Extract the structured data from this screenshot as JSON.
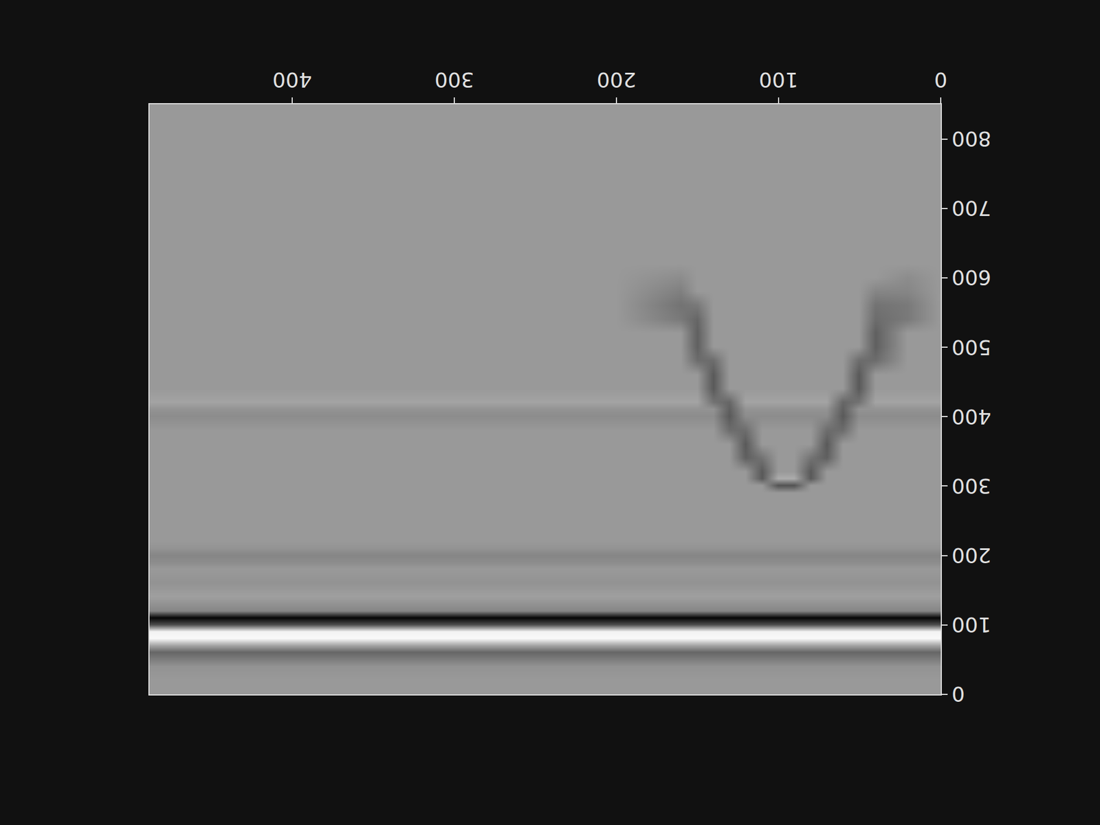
{
  "chart_data": {
    "type": "heatmap",
    "color": "gray",
    "grid": false,
    "xlim": [
      0,
      488
    ],
    "xticks": [
      0,
      100,
      200,
      300,
      400
    ],
    "ylim": [
      850,
      0
    ],
    "yticks": [
      0,
      100,
      200,
      300,
      400,
      500,
      600,
      700,
      800
    ],
    "color_range": [
      -1,
      1
    ],
    "x": [
      0,
      20,
      40,
      50,
      60,
      70,
      80,
      90,
      100,
      110,
      120,
      130,
      140,
      150,
      160,
      200,
      240,
      280,
      320,
      360,
      400,
      440,
      488
    ],
    "y": [
      0,
      20,
      40,
      60,
      70,
      80,
      90,
      100,
      110,
      120,
      140,
      160,
      180,
      190,
      200,
      210,
      220,
      240,
      260,
      280,
      290,
      300,
      310,
      320,
      340,
      360,
      380,
      400,
      410,
      420,
      440,
      460,
      480,
      500,
      520,
      540,
      560,
      580,
      600,
      620,
      640,
      680,
      720,
      760,
      800,
      850
    ],
    "cells": [
      [
        0.2,
        0.2,
        0.2,
        0.2,
        0.2,
        0.2,
        0.2,
        0.2,
        0.2,
        0.2,
        0.2,
        0.2,
        0.2,
        0.2,
        0.2,
        0.2,
        0.2,
        0.2,
        0.2,
        0.2,
        0.2,
        0.2,
        0.2
      ],
      [
        0.2,
        0.2,
        0.2,
        0.2,
        0.2,
        0.2,
        0.2,
        0.2,
        0.2,
        0.2,
        0.2,
        0.2,
        0.2,
        0.2,
        0.2,
        0.2,
        0.2,
        0.2,
        0.2,
        0.2,
        0.2,
        0.2,
        0.2
      ],
      [
        0.15,
        0.15,
        0.15,
        0.15,
        0.15,
        0.15,
        0.15,
        0.15,
        0.15,
        0.15,
        0.15,
        0.15,
        0.15,
        0.15,
        0.15,
        0.15,
        0.15,
        0.15,
        0.15,
        0.15,
        0.15,
        0.15,
        0.15
      ],
      [
        -0.2,
        -0.2,
        -0.2,
        -0.2,
        -0.2,
        -0.2,
        -0.2,
        -0.2,
        -0.2,
        -0.2,
        -0.2,
        -0.2,
        -0.2,
        -0.2,
        -0.2,
        -0.2,
        -0.2,
        -0.2,
        -0.2,
        -0.2,
        -0.2,
        -0.2,
        -0.2
      ],
      [
        0.3,
        0.3,
        0.3,
        0.3,
        0.3,
        0.3,
        0.3,
        0.3,
        0.3,
        0.3,
        0.3,
        0.3,
        0.3,
        0.3,
        0.3,
        0.3,
        0.3,
        0.3,
        0.3,
        0.3,
        0.3,
        0.3,
        0.3
      ],
      [
        0.95,
        0.95,
        0.95,
        0.95,
        0.95,
        0.95,
        0.95,
        0.95,
        0.95,
        0.95,
        0.95,
        0.95,
        0.95,
        0.95,
        0.95,
        0.95,
        0.95,
        0.95,
        0.95,
        0.95,
        0.95,
        0.95,
        0.95
      ],
      [
        0.9,
        0.9,
        0.9,
        0.9,
        0.9,
        0.9,
        0.9,
        0.9,
        0.9,
        0.9,
        0.9,
        0.9,
        0.9,
        0.9,
        0.9,
        0.9,
        0.9,
        0.9,
        0.9,
        0.9,
        0.9,
        0.9,
        0.9
      ],
      [
        -0.4,
        -0.4,
        -0.4,
        -0.4,
        -0.4,
        -0.4,
        -0.4,
        -0.4,
        -0.4,
        -0.4,
        -0.4,
        -0.4,
        -0.4,
        -0.4,
        -0.4,
        -0.4,
        -0.4,
        -0.4,
        -0.4,
        -0.4,
        -0.4,
        -0.4,
        -0.4
      ],
      [
        -0.95,
        -0.95,
        -0.95,
        -0.95,
        -0.95,
        -0.95,
        -0.95,
        -0.95,
        -0.95,
        -0.95,
        -0.95,
        -0.95,
        -0.95,
        -0.95,
        -0.95,
        -0.95,
        -0.95,
        -0.95,
        -0.95,
        -0.95,
        -0.95,
        -0.95,
        -0.95
      ],
      [
        0.05,
        0.05,
        0.05,
        0.05,
        0.05,
        0.05,
        0.05,
        0.05,
        0.05,
        0.05,
        0.05,
        0.05,
        0.05,
        0.05,
        0.05,
        0.05,
        0.05,
        0.05,
        0.05,
        0.05,
        0.05,
        0.05,
        0.05
      ],
      [
        0.25,
        0.25,
        0.25,
        0.25,
        0.25,
        0.25,
        0.25,
        0.25,
        0.25,
        0.25,
        0.25,
        0.25,
        0.25,
        0.25,
        0.25,
        0.25,
        0.25,
        0.25,
        0.25,
        0.25,
        0.25,
        0.25,
        0.25
      ],
      [
        0.15,
        0.15,
        0.15,
        0.15,
        0.15,
        0.15,
        0.15,
        0.15,
        0.15,
        0.15,
        0.15,
        0.15,
        0.15,
        0.15,
        0.15,
        0.15,
        0.15,
        0.15,
        0.15,
        0.15,
        0.15,
        0.15,
        0.15
      ],
      [
        0.2,
        0.2,
        0.2,
        0.2,
        0.2,
        0.2,
        0.2,
        0.2,
        0.2,
        0.2,
        0.2,
        0.2,
        0.2,
        0.2,
        0.2,
        0.2,
        0.2,
        0.2,
        0.2,
        0.2,
        0.2,
        0.2,
        0.2
      ],
      [
        0.1,
        0.1,
        0.1,
        0.1,
        0.1,
        0.1,
        0.1,
        0.1,
        0.1,
        0.1,
        0.1,
        0.1,
        0.1,
        0.1,
        0.1,
        0.1,
        0.1,
        0.1,
        0.1,
        0.1,
        0.1,
        0.1,
        0.1
      ],
      [
        0.05,
        0.05,
        0.05,
        0.05,
        0.05,
        0.05,
        0.05,
        0.05,
        0.05,
        0.05,
        0.05,
        0.05,
        0.05,
        0.05,
        0.05,
        0.05,
        0.05,
        0.05,
        0.05,
        0.05,
        0.05,
        0.05,
        0.05
      ],
      [
        0.15,
        0.15,
        0.15,
        0.15,
        0.15,
        0.15,
        0.15,
        0.15,
        0.15,
        0.15,
        0.15,
        0.15,
        0.15,
        0.15,
        0.15,
        0.15,
        0.15,
        0.15,
        0.15,
        0.15,
        0.15,
        0.15,
        0.15
      ],
      [
        0.2,
        0.2,
        0.2,
        0.2,
        0.2,
        0.2,
        0.2,
        0.2,
        0.2,
        0.2,
        0.2,
        0.2,
        0.2,
        0.2,
        0.2,
        0.2,
        0.2,
        0.2,
        0.2,
        0.2,
        0.2,
        0.2,
        0.2
      ],
      [
        0.2,
        0.2,
        0.2,
        0.2,
        0.2,
        0.2,
        0.2,
        0.2,
        0.2,
        0.2,
        0.2,
        0.2,
        0.2,
        0.2,
        0.2,
        0.2,
        0.2,
        0.2,
        0.2,
        0.2,
        0.2,
        0.2,
        0.2
      ],
      [
        0.2,
        0.2,
        0.2,
        0.2,
        0.2,
        0.2,
        0.2,
        0.2,
        0.2,
        0.2,
        0.2,
        0.2,
        0.2,
        0.2,
        0.2,
        0.2,
        0.2,
        0.2,
        0.2,
        0.2,
        0.2,
        0.2,
        0.2
      ],
      [
        0.2,
        0.2,
        0.2,
        0.2,
        0.2,
        0.2,
        0.2,
        0.2,
        0.2,
        0.2,
        0.2,
        0.2,
        0.2,
        0.2,
        0.2,
        0.2,
        0.2,
        0.2,
        0.2,
        0.2,
        0.2,
        0.2,
        0.2
      ],
      [
        0.2,
        0.2,
        0.2,
        0.2,
        0.2,
        0.2,
        0.2,
        0.2,
        0.2,
        0.2,
        0.2,
        0.2,
        0.2,
        0.2,
        0.2,
        0.2,
        0.2,
        0.2,
        0.2,
        0.2,
        0.2,
        0.2,
        0.2
      ],
      [
        0.2,
        0.2,
        0.2,
        0.2,
        0.2,
        0.2,
        0.2,
        -0.35,
        -0.35,
        0.2,
        0.2,
        0.2,
        0.2,
        0.2,
        0.2,
        0.2,
        0.2,
        0.2,
        0.2,
        0.2,
        0.2,
        0.2,
        0.2
      ],
      [
        0.2,
        0.2,
        0.2,
        0.2,
        0.2,
        0.2,
        -0.3,
        0.35,
        0.35,
        -0.3,
        0.2,
        0.2,
        0.2,
        0.2,
        0.2,
        0.2,
        0.2,
        0.2,
        0.2,
        0.2,
        0.2,
        0.2,
        0.2
      ],
      [
        0.2,
        0.2,
        0.2,
        0.2,
        0.2,
        0.2,
        -0.3,
        0.2,
        0.2,
        -0.3,
        0.2,
        0.2,
        0.2,
        0.2,
        0.2,
        0.2,
        0.2,
        0.2,
        0.2,
        0.2,
        0.2,
        0.2,
        0.2
      ],
      [
        0.2,
        0.2,
        0.2,
        0.2,
        0.2,
        -0.25,
        -0.1,
        0.2,
        0.2,
        -0.1,
        -0.25,
        0.2,
        0.2,
        0.2,
        0.2,
        0.2,
        0.2,
        0.2,
        0.2,
        0.2,
        0.2,
        0.2,
        0.2
      ],
      [
        0.2,
        0.2,
        0.2,
        0.2,
        0.2,
        -0.3,
        0.2,
        0.2,
        0.2,
        0.2,
        -0.3,
        0.2,
        0.2,
        0.2,
        0.2,
        0.2,
        0.2,
        0.2,
        0.2,
        0.2,
        0.2,
        0.2,
        0.2
      ],
      [
        0.2,
        0.2,
        0.2,
        0.2,
        -0.15,
        -0.15,
        0.2,
        0.2,
        0.2,
        0.2,
        -0.15,
        -0.15,
        0.2,
        0.2,
        0.2,
        0.2,
        0.2,
        0.2,
        0.2,
        0.2,
        0.2,
        0.2,
        0.2
      ],
      [
        0.1,
        0.1,
        0.1,
        0.1,
        -0.3,
        0.1,
        0.1,
        0.1,
        0.1,
        0.1,
        0.1,
        -0.3,
        0.1,
        0.1,
        0.1,
        0.1,
        0.1,
        0.1,
        0.1,
        0.1,
        0.1,
        0.1,
        0.1
      ],
      [
        0.15,
        0.15,
        0.15,
        0.15,
        -0.25,
        0.15,
        0.15,
        0.15,
        0.15,
        0.15,
        0.15,
        -0.25,
        0.15,
        0.15,
        0.15,
        0.15,
        0.15,
        0.15,
        0.15,
        0.15,
        0.15,
        0.15,
        0.15
      ],
      [
        0.28,
        0.28,
        0.28,
        -0.1,
        -0.2,
        0.28,
        0.28,
        0.28,
        0.28,
        0.28,
        0.28,
        -0.2,
        -0.1,
        0.28,
        0.28,
        0.28,
        0.28,
        0.28,
        0.28,
        0.28,
        0.28,
        0.28,
        0.28
      ],
      [
        0.2,
        0.2,
        0.2,
        -0.3,
        0.2,
        0.2,
        0.2,
        0.2,
        0.2,
        0.2,
        0.2,
        0.2,
        -0.3,
        0.2,
        0.2,
        0.2,
        0.2,
        0.2,
        0.2,
        0.2,
        0.2,
        0.2,
        0.2
      ],
      [
        0.2,
        0.2,
        0.2,
        -0.3,
        0.2,
        0.2,
        0.2,
        0.2,
        0.2,
        0.2,
        0.2,
        0.2,
        -0.3,
        0.2,
        0.2,
        0.2,
        0.2,
        0.2,
        0.2,
        0.2,
        0.2,
        0.2,
        0.2
      ],
      [
        0.2,
        0.2,
        -0.15,
        -0.15,
        0.2,
        0.2,
        0.2,
        0.2,
        0.2,
        0.2,
        0.2,
        0.2,
        -0.15,
        -0.15,
        0.2,
        0.2,
        0.2,
        0.2,
        0.2,
        0.2,
        0.2,
        0.2,
        0.2
      ],
      [
        0.2,
        0.2,
        -0.25,
        0.2,
        0.2,
        0.2,
        0.2,
        0.2,
        0.2,
        0.2,
        0.2,
        0.2,
        0.2,
        -0.25,
        0.2,
        0.2,
        0.2,
        0.2,
        0.2,
        0.2,
        0.2,
        0.2,
        0.2
      ],
      [
        0.2,
        0.2,
        -0.25,
        0.2,
        0.2,
        0.2,
        0.2,
        0.2,
        0.2,
        0.2,
        0.2,
        0.2,
        0.2,
        -0.25,
        0.2,
        0.2,
        0.2,
        0.2,
        0.2,
        0.2,
        0.2,
        0.2,
        0.2
      ],
      [
        0.2,
        -0.05,
        -0.15,
        0.2,
        0.2,
        0.2,
        0.2,
        0.2,
        0.2,
        0.2,
        0.2,
        0.2,
        0.2,
        -0.2,
        -0.05,
        0.2,
        0.2,
        0.2,
        0.2,
        0.2,
        0.2,
        0.2,
        0.2
      ],
      [
        0.2,
        -0.05,
        -0.1,
        0.2,
        0.2,
        0.2,
        0.2,
        0.2,
        0.2,
        0.2,
        0.2,
        0.2,
        0.2,
        -0.05,
        -0.1,
        0.2,
        0.2,
        0.2,
        0.2,
        0.2,
        0.2,
        0.2,
        0.2
      ],
      [
        0.2,
        0.05,
        0.05,
        0.2,
        0.2,
        0.2,
        0.2,
        0.2,
        0.2,
        0.2,
        0.2,
        0.2,
        0.2,
        0.2,
        0.0,
        0.2,
        0.2,
        0.2,
        0.2,
        0.2,
        0.2,
        0.2,
        0.2
      ],
      [
        0.2,
        0.1,
        0.2,
        0.2,
        0.2,
        0.2,
        0.2,
        0.2,
        0.2,
        0.2,
        0.2,
        0.2,
        0.2,
        0.2,
        0.1,
        0.2,
        0.2,
        0.2,
        0.2,
        0.2,
        0.2,
        0.2,
        0.2
      ],
      [
        0.2,
        0.2,
        0.2,
        0.2,
        0.2,
        0.2,
        0.2,
        0.2,
        0.2,
        0.2,
        0.2,
        0.2,
        0.2,
        0.2,
        0.2,
        0.2,
        0.2,
        0.2,
        0.2,
        0.2,
        0.2,
        0.2,
        0.2
      ],
      [
        0.2,
        0.2,
        0.2,
        0.2,
        0.2,
        0.2,
        0.2,
        0.2,
        0.2,
        0.2,
        0.2,
        0.2,
        0.2,
        0.2,
        0.2,
        0.2,
        0.2,
        0.2,
        0.2,
        0.2,
        0.2,
        0.2,
        0.2
      ],
      [
        0.2,
        0.2,
        0.2,
        0.2,
        0.2,
        0.2,
        0.2,
        0.2,
        0.2,
        0.2,
        0.2,
        0.2,
        0.2,
        0.2,
        0.2,
        0.2,
        0.2,
        0.2,
        0.2,
        0.2,
        0.2,
        0.2,
        0.2
      ],
      [
        0.2,
        0.2,
        0.2,
        0.2,
        0.2,
        0.2,
        0.2,
        0.2,
        0.2,
        0.2,
        0.2,
        0.2,
        0.2,
        0.2,
        0.2,
        0.2,
        0.2,
        0.2,
        0.2,
        0.2,
        0.2,
        0.2,
        0.2
      ],
      [
        0.2,
        0.2,
        0.2,
        0.2,
        0.2,
        0.2,
        0.2,
        0.2,
        0.2,
        0.2,
        0.2,
        0.2,
        0.2,
        0.2,
        0.2,
        0.2,
        0.2,
        0.2,
        0.2,
        0.2,
        0.2,
        0.2,
        0.2
      ],
      [
        0.2,
        0.2,
        0.2,
        0.2,
        0.2,
        0.2,
        0.2,
        0.2,
        0.2,
        0.2,
        0.2,
        0.2,
        0.2,
        0.2,
        0.2,
        0.2,
        0.2,
        0.2,
        0.2,
        0.2,
        0.2,
        0.2,
        0.2
      ],
      [
        0.2,
        0.2,
        0.2,
        0.2,
        0.2,
        0.2,
        0.2,
        0.2,
        0.2,
        0.2,
        0.2,
        0.2,
        0.2,
        0.2,
        0.2,
        0.2,
        0.2,
        0.2,
        0.2,
        0.2,
        0.2,
        0.2,
        0.2
      ]
    ]
  }
}
